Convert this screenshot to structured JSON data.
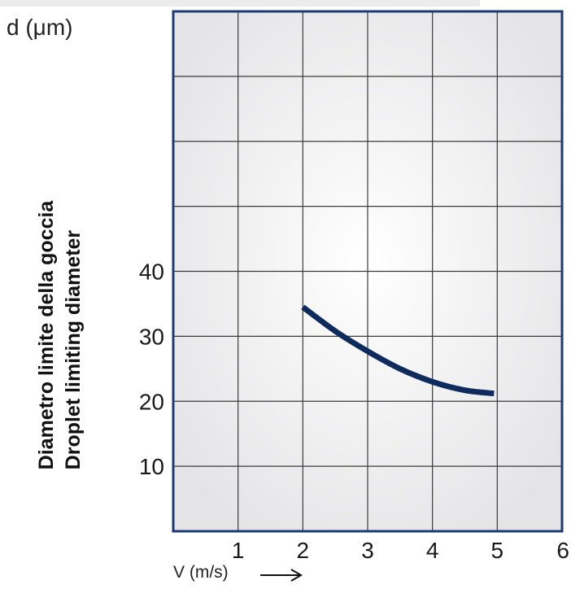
{
  "chart_data": {
    "type": "line",
    "ylabel": "d",
    "ylabel_unit": "(μm)",
    "title_it": "Diametro limite della goccia",
    "title_en": "Droplet limiting diameter",
    "xlabel": "V (m/s)",
    "xlim": [
      0,
      6
    ],
    "ylim": [
      0,
      80
    ],
    "x_ticks": [
      "1",
      "2",
      "3",
      "4",
      "5",
      "6"
    ],
    "y_ticks": [
      "10",
      "20",
      "30",
      "40"
    ],
    "grid": true,
    "series": [
      {
        "x": [
          2.0,
          2.5,
          3.0,
          3.5,
          4.0,
          4.5,
          4.95
        ],
        "y": [
          34.5,
          30.8,
          27.7,
          25.0,
          23.0,
          21.7,
          21.2
        ]
      }
    ],
    "colors": {
      "frame": "#1c3a73",
      "curve": "#0f2b5e",
      "grid": "#3a3a3a",
      "plot_bg_center": "#ffffff",
      "plot_bg_edge": "#e4e4e6"
    }
  }
}
